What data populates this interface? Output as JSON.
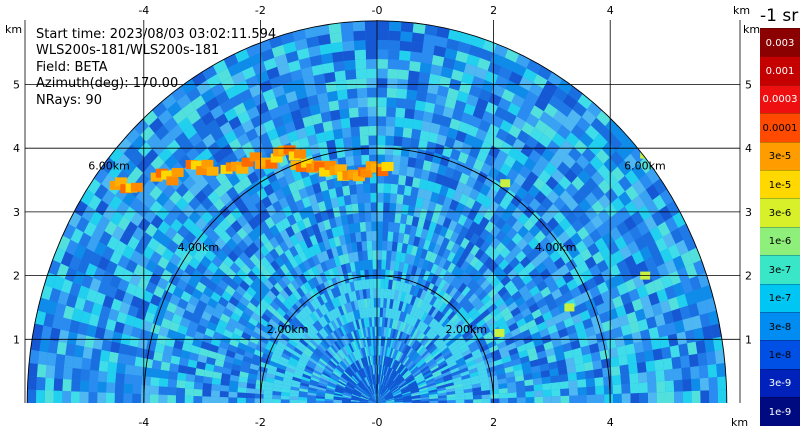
{
  "info": {
    "start_time": "Start time: 2023/08/03 03:02:11.594",
    "instrument": "WLS200s-181/WLS200s-181",
    "field": "Field: BETA",
    "azimuth": "Azimuth(deg): 170.00",
    "nrays": "NRays: 90"
  },
  "colorbar": {
    "unit": "-1 sr",
    "labels": [
      "0.003",
      "0.001",
      "0.0003",
      "0.0001",
      "3e-5",
      "1e-5",
      "3e-6",
      "1e-6",
      "3e-7",
      "1e-7",
      "3e-8",
      "1e-8",
      "3e-9",
      "1e-9"
    ],
    "colors": [
      "#8b0000",
      "#c40000",
      "#ee1010",
      "#ff4a00",
      "#ff9d00",
      "#ffd800",
      "#d8f02a",
      "#8ef07a",
      "#39e6c8",
      "#00c6f4",
      "#008cf0",
      "#0050e6",
      "#0022bb",
      "#000a80"
    ]
  },
  "chart_data": {
    "type": "heatmap",
    "subtype": "rhi-range-height-scan",
    "title": "",
    "field": "BETA",
    "azimuth_deg": 170.0,
    "nrays": 90,
    "xlabel": "km",
    "ylabel": "km",
    "xlim": [
      -6.0,
      6.0
    ],
    "ylim": [
      0,
      5.5
    ],
    "x_ticks": [
      -4,
      -2,
      0,
      2,
      4
    ],
    "y_ticks": [
      1,
      2,
      3,
      4,
      5
    ],
    "x_tick_labels": [
      "-4",
      "-2",
      "-0",
      "2",
      "4"
    ],
    "y_tick_labels": [
      "1",
      "2",
      "3",
      "4",
      "5"
    ],
    "max_range_km": 6.0,
    "range_rings_km": [
      2.0,
      4.0,
      6.0
    ],
    "range_ring_labels": [
      "2.00km",
      "4.00km",
      "6.00km"
    ],
    "grid": true,
    "colorbar_location": "right",
    "colorbar_unit": "-1 sr",
    "colorbar_labels": [
      "0.003",
      "0.001",
      "0.0003",
      "0.0001",
      "3e-5",
      "1e-5",
      "3e-6",
      "1e-6",
      "3e-7",
      "1e-7",
      "3e-8",
      "1e-8",
      "3e-9",
      "1e-9"
    ],
    "cloud_layer_points_km": [
      [
        -4.3,
        3.4
      ],
      [
        -3.6,
        3.55
      ],
      [
        -3.0,
        3.7
      ],
      [
        -2.4,
        3.7
      ],
      [
        -1.9,
        3.8
      ],
      [
        -1.5,
        3.9
      ],
      [
        -1.2,
        3.75
      ],
      [
        -0.8,
        3.65
      ],
      [
        -0.4,
        3.6
      ],
      [
        0.0,
        3.65
      ]
    ],
    "echo_points_km": [
      [
        2.2,
        3.45
      ],
      [
        4.6,
        3.9
      ],
      [
        2.1,
        1.1
      ],
      [
        3.3,
        1.5
      ],
      [
        4.6,
        2.0
      ]
    ]
  }
}
